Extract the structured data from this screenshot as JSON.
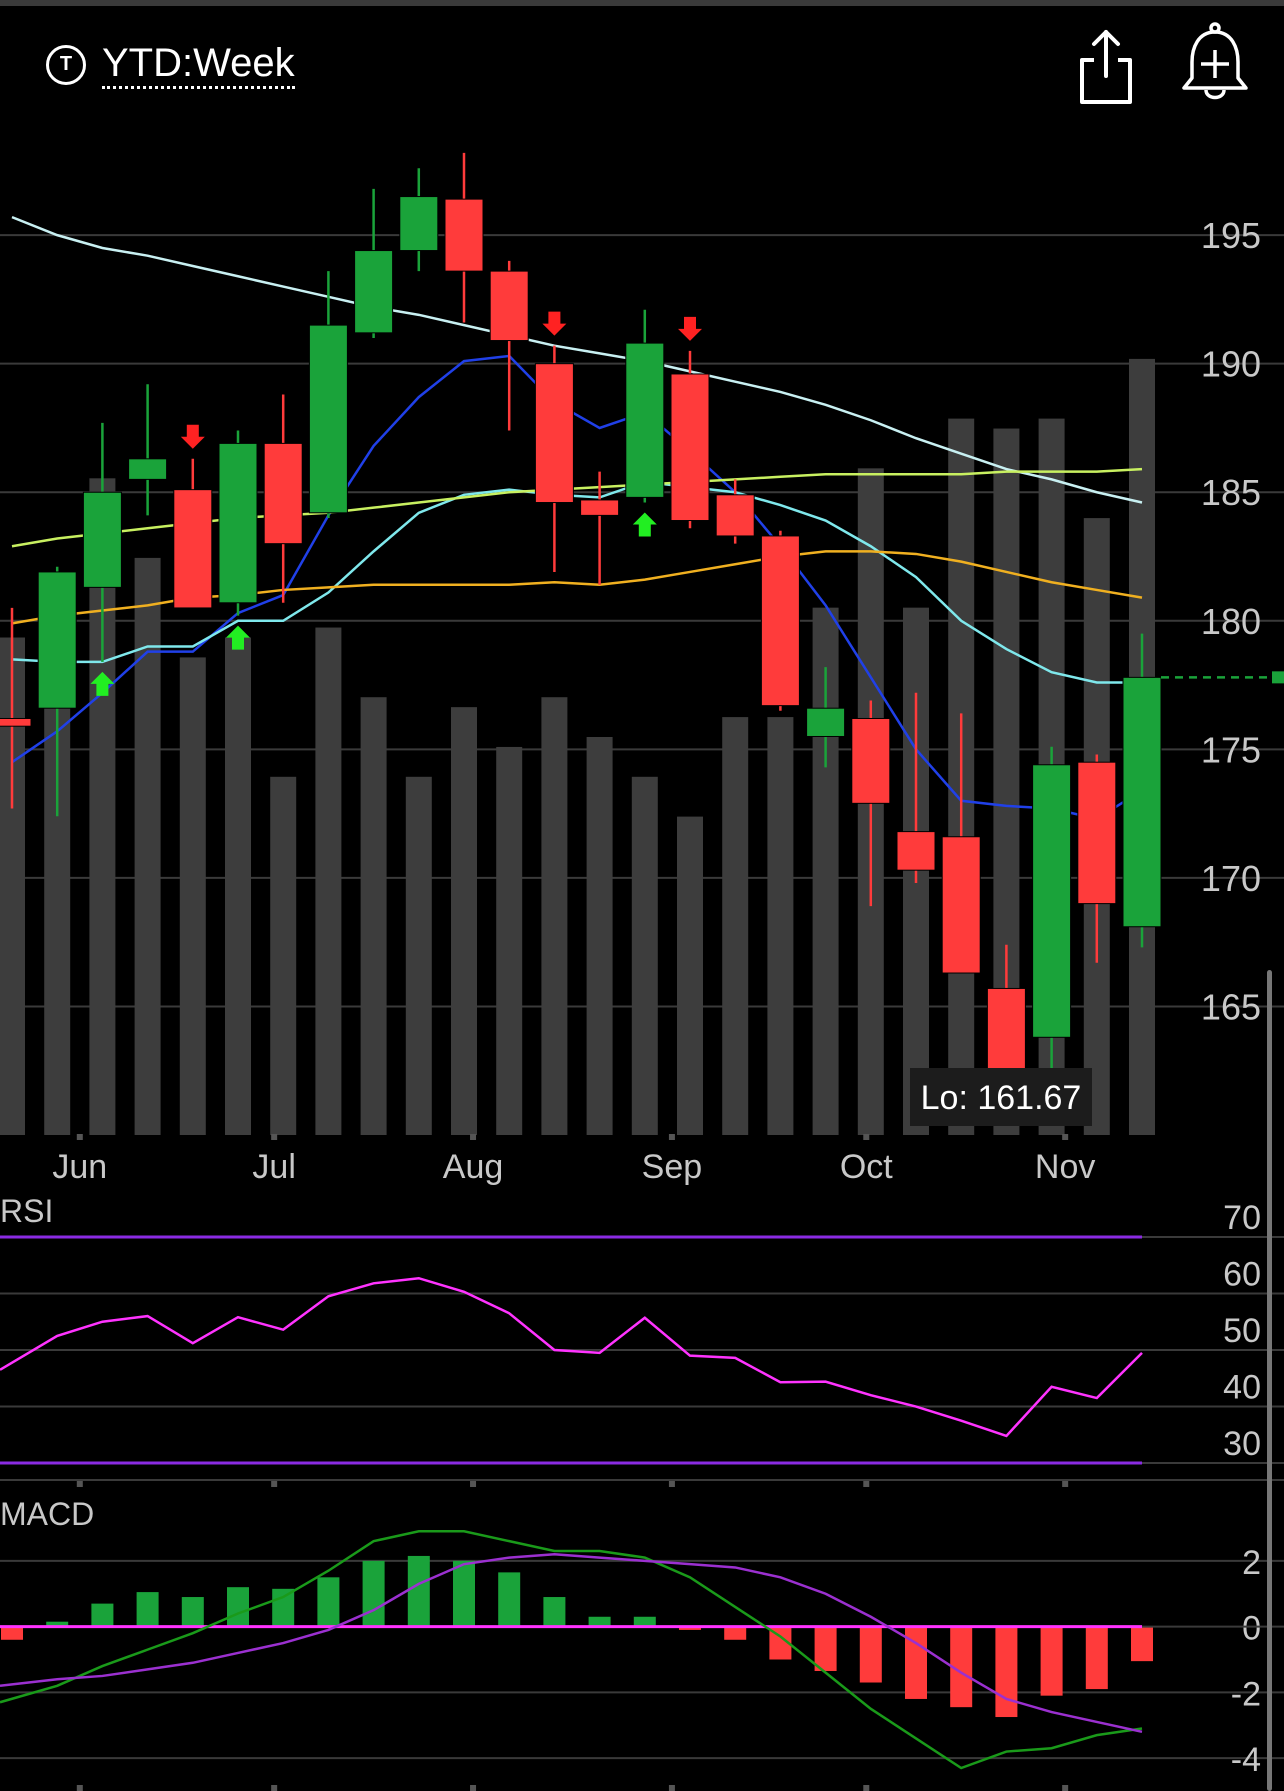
{
  "header": {
    "period_icon_letter": "T",
    "period_label": "YTD:Week",
    "share_icon": "share-icon",
    "alert_icon": "bell-plus-icon"
  },
  "colors": {
    "background": "#000000",
    "grid": "#3a3a3a",
    "up": "#1aa33a",
    "down": "#ff3b3b",
    "volume": "#3d3d3d",
    "ma_blue": "#2040e8",
    "ma_cyan": "#7fe8ec",
    "ma_lightblue": "#c8f0f2",
    "ma_lime": "#c8f060",
    "ma_orange": "#f0b020",
    "rsi": "#ff33ff",
    "rsi_bounds": "#8a2be2",
    "macd_line": "#1a9a1a",
    "macd_signal": "#9b30d0",
    "macd_zero": "#ff33ff",
    "signal_up": "#22ee22",
    "signal_down": "#ff2222",
    "price_tag": "#1aa33a"
  },
  "chart_data": {
    "type": "candlestick",
    "price_axis": {
      "ylim": [
        160,
        198.7
      ],
      "ticks": [
        165,
        170,
        175,
        180,
        185,
        190,
        195
      ]
    },
    "x_labels": [
      "Jun",
      "Jul",
      "Aug",
      "Sep",
      "Oct",
      "Nov"
    ],
    "x_label_weeks": [
      1.5,
      5.8,
      10.2,
      14.6,
      18.9,
      23.3
    ],
    "low_label": "Lo: 161.67",
    "last_price": 177.8,
    "candles": [
      {
        "o": 176.2,
        "h": 180.5,
        "l": 172.7,
        "c": 175.9
      },
      {
        "o": 176.6,
        "h": 182.1,
        "l": 172.4,
        "c": 181.9
      },
      {
        "o": 181.3,
        "h": 187.7,
        "l": 178.4,
        "c": 185.0
      },
      {
        "o": 185.5,
        "h": 189.2,
        "l": 184.1,
        "c": 186.3
      },
      {
        "o": 185.1,
        "h": 186.3,
        "l": 180.7,
        "c": 180.5
      },
      {
        "o": 180.7,
        "h": 187.4,
        "l": 180.2,
        "c": 186.9
      },
      {
        "o": 186.9,
        "h": 188.8,
        "l": 180.7,
        "c": 183.0
      },
      {
        "o": 184.2,
        "h": 193.6,
        "l": 184.0,
        "c": 191.5
      },
      {
        "o": 191.2,
        "h": 196.8,
        "l": 191.0,
        "c": 194.4
      },
      {
        "o": 194.4,
        "h": 197.6,
        "l": 193.6,
        "c": 196.5
      },
      {
        "o": 196.4,
        "h": 198.2,
        "l": 191.6,
        "c": 193.6
      },
      {
        "o": 193.6,
        "h": 194.0,
        "l": 187.4,
        "c": 190.9
      },
      {
        "o": 190.0,
        "h": 190.7,
        "l": 181.9,
        "c": 184.6
      },
      {
        "o": 184.7,
        "h": 185.8,
        "l": 181.4,
        "c": 184.1
      },
      {
        "o": 184.8,
        "h": 192.1,
        "l": 184.6,
        "c": 190.8
      },
      {
        "o": 189.6,
        "h": 190.5,
        "l": 183.6,
        "c": 183.9
      },
      {
        "o": 184.9,
        "h": 185.5,
        "l": 183.0,
        "c": 183.3
      },
      {
        "o": 183.3,
        "h": 183.5,
        "l": 176.5,
        "c": 176.7
      },
      {
        "o": 175.5,
        "h": 178.2,
        "l": 174.3,
        "c": 176.6
      },
      {
        "o": 176.2,
        "h": 176.9,
        "l": 168.9,
        "c": 172.9
      },
      {
        "o": 171.8,
        "h": 177.2,
        "l": 169.8,
        "c": 170.3
      },
      {
        "o": 171.6,
        "h": 176.4,
        "l": 166.3,
        "c": 166.3
      },
      {
        "o": 165.7,
        "h": 167.4,
        "l": 161.7,
        "c": 162.2
      },
      {
        "o": 163.8,
        "h": 175.1,
        "l": 162.3,
        "c": 174.4
      },
      {
        "o": 174.5,
        "h": 174.8,
        "l": 166.7,
        "c": 169.0
      },
      {
        "o": 168.1,
        "h": 179.5,
        "l": 167.3,
        "c": 177.8
      }
    ],
    "volume_relative": [
      0.5,
      0.46,
      0.66,
      0.58,
      0.48,
      0.5,
      0.36,
      0.51,
      0.44,
      0.36,
      0.43,
      0.39,
      0.44,
      0.4,
      0.36,
      0.32,
      0.42,
      0.42,
      0.53,
      0.67,
      0.53,
      0.72,
      0.71,
      0.72,
      0.62,
      0.78
    ],
    "moving_averages": [
      {
        "color": "ma_blue",
        "values": [
          174.5,
          175.7,
          177.2,
          178.8,
          178.8,
          180.3,
          181.0,
          184.1,
          186.8,
          188.7,
          190.1,
          190.3,
          188.5,
          187.5,
          188.1,
          186.6,
          185.0,
          182.9,
          180.6,
          177.8,
          175.0,
          173.0,
          172.8,
          172.7,
          172.3,
          173.4
        ]
      },
      {
        "color": "ma_cyan",
        "values": [
          178.5,
          178.4,
          178.4,
          179.0,
          179.0,
          180.0,
          180.0,
          181.1,
          182.7,
          184.2,
          184.9,
          185.1,
          184.9,
          184.8,
          185.4,
          185.2,
          185.0,
          184.5,
          183.9,
          182.9,
          181.7,
          180.0,
          178.9,
          178.0,
          177.6,
          177.6
        ]
      },
      {
        "color": "ma_lightblue",
        "values": [
          195.7,
          195.0,
          194.5,
          194.2,
          193.8,
          193.4,
          193.0,
          192.6,
          192.2,
          191.9,
          191.5,
          191.1,
          190.7,
          190.4,
          190.1,
          189.7,
          189.3,
          188.9,
          188.4,
          187.8,
          187.1,
          186.5,
          185.9,
          185.5,
          185.0,
          184.6
        ]
      },
      {
        "color": "ma_lime",
        "values": [
          182.9,
          183.2,
          183.4,
          183.6,
          183.8,
          184.0,
          184.1,
          184.2,
          184.4,
          184.6,
          184.8,
          185.0,
          185.1,
          185.2,
          185.3,
          185.4,
          185.5,
          185.6,
          185.7,
          185.7,
          185.7,
          185.7,
          185.8,
          185.8,
          185.8,
          185.9
        ]
      },
      {
        "color": "ma_orange",
        "values": [
          179.9,
          180.2,
          180.4,
          180.6,
          180.9,
          181.0,
          181.2,
          181.3,
          181.4,
          181.4,
          181.4,
          181.4,
          181.5,
          181.4,
          181.6,
          181.9,
          182.2,
          182.5,
          182.7,
          182.7,
          182.6,
          182.3,
          181.9,
          181.5,
          181.2,
          180.9
        ]
      }
    ],
    "signals": [
      {
        "week": 2,
        "dir": "up"
      },
      {
        "week": 4,
        "dir": "down"
      },
      {
        "week": 5,
        "dir": "up"
      },
      {
        "week": 12,
        "dir": "down"
      },
      {
        "week": 14,
        "dir": "up"
      },
      {
        "week": 15,
        "dir": "down"
      }
    ],
    "rsi": {
      "label": "RSI",
      "ylim": [
        27,
        73
      ],
      "ticks": [
        30,
        40,
        50,
        60,
        70
      ],
      "bounds": [
        70,
        30
      ],
      "values": [
        46.5,
        52.5,
        55,
        56,
        51.2,
        55.8,
        53.6,
        59.5,
        61.8,
        62.7,
        60.3,
        56.5,
        50.0,
        49.5,
        55.7,
        49.0,
        48.6,
        44.3,
        44.4,
        42.0,
        40.0,
        37.5,
        34.8,
        43.5,
        41.5,
        49.5
      ]
    },
    "macd": {
      "label": "MACD",
      "ylim": [
        -5.0,
        3.0
      ],
      "ticks": [
        -4,
        -2,
        0,
        2
      ],
      "histogram": [
        -0.4,
        0.15,
        0.7,
        1.05,
        0.9,
        1.2,
        1.15,
        1.5,
        2.0,
        2.15,
        2.0,
        1.65,
        0.9,
        0.3,
        0.3,
        -0.1,
        -0.4,
        -1.0,
        -1.35,
        -1.7,
        -2.2,
        -2.45,
        -2.75,
        -2.1,
        -1.9,
        -1.05
      ],
      "macd_line": [
        -2.3,
        -1.8,
        -1.2,
        -0.7,
        -0.2,
        0.4,
        0.9,
        1.7,
        2.6,
        2.9,
        2.9,
        2.6,
        2.3,
        2.3,
        2.1,
        1.5,
        0.6,
        -0.3,
        -1.4,
        -2.5,
        -3.4,
        -4.3,
        -3.8,
        -3.7,
        -3.3,
        -3.1
      ],
      "signal_line": [
        -1.8,
        -1.6,
        -1.5,
        -1.3,
        -1.1,
        -0.8,
        -0.5,
        -0.1,
        0.5,
        1.3,
        1.9,
        2.1,
        2.2,
        2.1,
        2.0,
        1.9,
        1.8,
        1.5,
        1.0,
        0.3,
        -0.5,
        -1.4,
        -2.2,
        -2.6,
        -2.9,
        -3.2
      ]
    }
  }
}
